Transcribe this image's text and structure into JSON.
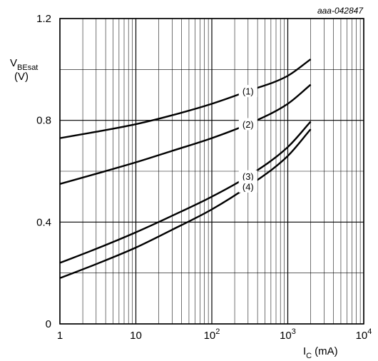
{
  "chart_data": {
    "type": "line",
    "reference": "aaa-042847",
    "title": "",
    "ylabel": {
      "main": "V",
      "sub": "BEsat",
      "unit": "(V)"
    },
    "xlabel": {
      "main": "I",
      "sub": "C",
      "unit": "(mA)"
    },
    "x_scale": "log",
    "xlim": [
      1,
      10000
    ],
    "ylim": [
      0,
      1.2
    ],
    "grid": true,
    "x_ticks": [
      {
        "value": 1,
        "base": "1",
        "exp": ""
      },
      {
        "value": 10,
        "base": "10",
        "exp": ""
      },
      {
        "value": 100,
        "base": "10",
        "exp": "2"
      },
      {
        "value": 1000,
        "base": "10",
        "exp": "3"
      },
      {
        "value": 10000,
        "base": "10",
        "exp": "4"
      }
    ],
    "y_ticks": [
      {
        "value": 0,
        "label": "0"
      },
      {
        "value": 0.4,
        "label": "0.4"
      },
      {
        "value": 0.8,
        "label": "0.8"
      },
      {
        "value": 1.2,
        "label": "1.2"
      }
    ],
    "series": [
      {
        "name": "(1)",
        "x": [
          1,
          3,
          10,
          30,
          100,
          300,
          1000,
          2000
        ],
        "y": [
          0.73,
          0.755,
          0.785,
          0.82,
          0.865,
          0.915,
          0.975,
          1.04
        ]
      },
      {
        "name": "(2)",
        "x": [
          1,
          3,
          10,
          30,
          100,
          300,
          1000,
          2000
        ],
        "y": [
          0.55,
          0.59,
          0.635,
          0.68,
          0.73,
          0.785,
          0.865,
          0.94
        ]
      },
      {
        "name": "(3)",
        "x": [
          1,
          3,
          10,
          30,
          100,
          300,
          1000,
          2000
        ],
        "y": [
          0.24,
          0.295,
          0.36,
          0.425,
          0.5,
          0.58,
          0.695,
          0.795
        ]
      },
      {
        "name": "(4)",
        "x": [
          1,
          3,
          10,
          30,
          100,
          300,
          1000,
          2000
        ],
        "y": [
          0.18,
          0.235,
          0.3,
          0.37,
          0.45,
          0.54,
          0.66,
          0.765
        ]
      }
    ]
  }
}
